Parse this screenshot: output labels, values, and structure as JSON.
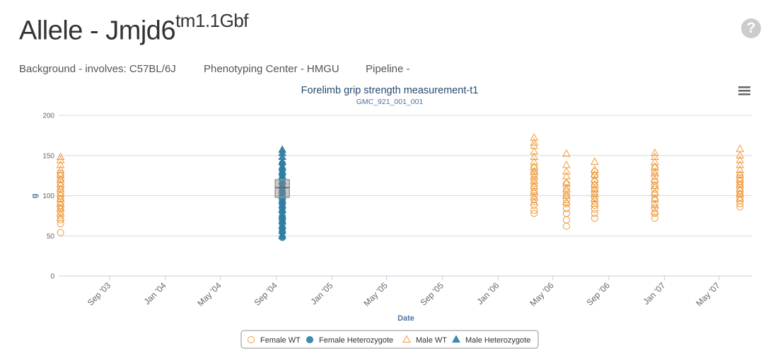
{
  "header": {
    "title_main": "Allele - Jmjd6",
    "title_sup": "tm1.1Gbf",
    "help_icon": "?",
    "background": "Background - involves: C57BL/6J",
    "center": "Phenotyping Center - HMGU",
    "pipeline": "Pipeline -"
  },
  "menu": {
    "icon": "hamburger-menu-icon"
  },
  "colors": {
    "wt": "#ef9b3c",
    "het": "#2f7ea5",
    "grid": "#d8d8d8",
    "axis": "#c0d0e0"
  },
  "chart_data": {
    "type": "scatter",
    "title": "Forelimb grip strength measurement-t1",
    "subtitle": "GMC_921_001_001",
    "xlabel": "Date",
    "ylabel": "g",
    "ylim": [
      0,
      200
    ],
    "yticks": [
      "0",
      "50",
      "100",
      "150",
      "200"
    ],
    "xlim": [
      "2003-05-12",
      "2007-07-12"
    ],
    "xticks": [
      {
        "date": "2003-09-01",
        "label": "Sep '03"
      },
      {
        "date": "2004-01-01",
        "label": "Jan '04"
      },
      {
        "date": "2004-05-01",
        "label": "May '04"
      },
      {
        "date": "2004-09-01",
        "label": "Sep '04"
      },
      {
        "date": "2005-01-01",
        "label": "Jan '05"
      },
      {
        "date": "2005-05-01",
        "label": "May '05"
      },
      {
        "date": "2005-09-01",
        "label": "Sep '05"
      },
      {
        "date": "2006-01-01",
        "label": "Jan '06"
      },
      {
        "date": "2006-05-01",
        "label": "May '06"
      },
      {
        "date": "2006-09-01",
        "label": "Sep '06"
      },
      {
        "date": "2007-01-01",
        "label": "Jan '07"
      },
      {
        "date": "2007-05-01",
        "label": "May '07"
      }
    ],
    "legend_position": "bottom-center",
    "series": [
      {
        "name": "Female WT",
        "marker": "circle-open",
        "color": "#ef9b3c",
        "points": [
          [
            "2003-05-16",
            54
          ],
          [
            "2003-05-16",
            65
          ],
          [
            "2003-05-16",
            70
          ],
          [
            "2003-05-16",
            75
          ],
          [
            "2003-05-16",
            80
          ],
          [
            "2003-05-16",
            85
          ],
          [
            "2003-05-16",
            88
          ],
          [
            "2003-05-16",
            92
          ],
          [
            "2003-05-16",
            96
          ],
          [
            "2003-05-16",
            100
          ],
          [
            "2003-05-16",
            104
          ],
          [
            "2003-05-16",
            108
          ],
          [
            "2003-05-16",
            112
          ],
          [
            "2003-05-16",
            116
          ],
          [
            "2003-05-16",
            120
          ],
          [
            "2003-05-16",
            125
          ],
          [
            "2003-05-16",
            128
          ],
          [
            "2006-03-21",
            78
          ],
          [
            "2006-03-21",
            82
          ],
          [
            "2006-03-21",
            88
          ],
          [
            "2006-03-21",
            95
          ],
          [
            "2006-03-21",
            100
          ],
          [
            "2006-03-21",
            105
          ],
          [
            "2006-03-21",
            110
          ],
          [
            "2006-03-21",
            115
          ],
          [
            "2006-03-21",
            120
          ],
          [
            "2006-03-21",
            126
          ],
          [
            "2006-03-21",
            130
          ],
          [
            "2006-03-21",
            135
          ],
          [
            "2006-05-31",
            62
          ],
          [
            "2006-05-31",
            70
          ],
          [
            "2006-05-31",
            78
          ],
          [
            "2006-05-31",
            84
          ],
          [
            "2006-05-31",
            90
          ],
          [
            "2006-05-31",
            95
          ],
          [
            "2006-05-31",
            100
          ],
          [
            "2006-05-31",
            105
          ],
          [
            "2006-05-31",
            110
          ],
          [
            "2006-05-31",
            115
          ],
          [
            "2006-08-01",
            72
          ],
          [
            "2006-08-01",
            78
          ],
          [
            "2006-08-01",
            83
          ],
          [
            "2006-08-01",
            88
          ],
          [
            "2006-08-01",
            93
          ],
          [
            "2006-08-01",
            98
          ],
          [
            "2006-08-01",
            103
          ],
          [
            "2006-08-01",
            108
          ],
          [
            "2006-08-01",
            113
          ],
          [
            "2006-08-01",
            118
          ],
          [
            "2006-08-01",
            125
          ],
          [
            "2006-08-01",
            130
          ],
          [
            "2006-12-11",
            72
          ],
          [
            "2006-12-11",
            78
          ],
          [
            "2006-12-11",
            84
          ],
          [
            "2006-12-11",
            90
          ],
          [
            "2006-12-11",
            96
          ],
          [
            "2006-12-11",
            102
          ],
          [
            "2006-12-11",
            108
          ],
          [
            "2006-12-11",
            113
          ],
          [
            "2006-12-11",
            118
          ],
          [
            "2006-12-11",
            124
          ],
          [
            "2006-12-11",
            130
          ],
          [
            "2006-12-11",
            135
          ],
          [
            "2007-06-16",
            86
          ],
          [
            "2007-06-16",
            90
          ],
          [
            "2007-06-16",
            94
          ],
          [
            "2007-06-16",
            98
          ],
          [
            "2007-06-16",
            102
          ],
          [
            "2007-06-16",
            106
          ],
          [
            "2007-06-16",
            110
          ],
          [
            "2007-06-16",
            114
          ],
          [
            "2007-06-16",
            118
          ],
          [
            "2007-06-16",
            122
          ],
          [
            "2007-06-16",
            126
          ]
        ]
      },
      {
        "name": "Female Heterozygote",
        "marker": "circle",
        "color": "#2f7ea5",
        "points": [
          [
            "2004-09-14",
            48
          ],
          [
            "2004-09-14",
            55
          ],
          [
            "2004-09-14",
            60
          ],
          [
            "2004-09-14",
            66
          ],
          [
            "2004-09-14",
            70
          ],
          [
            "2004-09-14",
            74
          ],
          [
            "2004-09-14",
            80
          ],
          [
            "2004-09-14",
            85
          ],
          [
            "2004-09-14",
            90
          ],
          [
            "2004-09-14",
            95
          ],
          [
            "2004-09-14",
            100
          ],
          [
            "2004-09-14",
            105
          ],
          [
            "2004-09-14",
            110
          ],
          [
            "2004-09-14",
            115
          ],
          [
            "2004-09-14",
            120
          ],
          [
            "2004-09-14",
            126
          ],
          [
            "2004-09-14",
            132
          ],
          [
            "2004-09-14",
            140
          ]
        ]
      },
      {
        "name": "Male WT",
        "marker": "triangle-open",
        "color": "#ef9b3c",
        "points": [
          [
            "2003-05-16",
            72
          ],
          [
            "2003-05-16",
            78
          ],
          [
            "2003-05-16",
            84
          ],
          [
            "2003-05-16",
            90
          ],
          [
            "2003-05-16",
            96
          ],
          [
            "2003-05-16",
            102
          ],
          [
            "2003-05-16",
            108
          ],
          [
            "2003-05-16",
            114
          ],
          [
            "2003-05-16",
            120
          ],
          [
            "2003-05-16",
            126
          ],
          [
            "2003-05-16",
            132
          ],
          [
            "2003-05-16",
            138
          ],
          [
            "2003-05-16",
            144
          ],
          [
            "2003-05-16",
            148
          ],
          [
            "2006-03-21",
            92
          ],
          [
            "2006-03-21",
            98
          ],
          [
            "2006-03-21",
            105
          ],
          [
            "2006-03-21",
            112
          ],
          [
            "2006-03-21",
            118
          ],
          [
            "2006-03-21",
            124
          ],
          [
            "2006-03-21",
            130
          ],
          [
            "2006-03-21",
            136
          ],
          [
            "2006-03-21",
            142
          ],
          [
            "2006-03-21",
            148
          ],
          [
            "2006-03-21",
            155
          ],
          [
            "2006-03-21",
            162
          ],
          [
            "2006-03-21",
            166
          ],
          [
            "2006-03-21",
            172
          ],
          [
            "2006-05-31",
            92
          ],
          [
            "2006-05-31",
            100
          ],
          [
            "2006-05-31",
            108
          ],
          [
            "2006-05-31",
            116
          ],
          [
            "2006-05-31",
            124
          ],
          [
            "2006-05-31",
            130
          ],
          [
            "2006-05-31",
            138
          ],
          [
            "2006-05-31",
            152
          ],
          [
            "2006-08-01",
            90
          ],
          [
            "2006-08-01",
            96
          ],
          [
            "2006-08-01",
            102
          ],
          [
            "2006-08-01",
            108
          ],
          [
            "2006-08-01",
            114
          ],
          [
            "2006-08-01",
            120
          ],
          [
            "2006-08-01",
            126
          ],
          [
            "2006-08-01",
            132
          ],
          [
            "2006-08-01",
            142
          ],
          [
            "2006-12-11",
            80
          ],
          [
            "2006-12-11",
            88
          ],
          [
            "2006-12-11",
            96
          ],
          [
            "2006-12-11",
            104
          ],
          [
            "2006-12-11",
            112
          ],
          [
            "2006-12-11",
            120
          ],
          [
            "2006-12-11",
            128
          ],
          [
            "2006-12-11",
            136
          ],
          [
            "2006-12-11",
            142
          ],
          [
            "2006-12-11",
            148
          ],
          [
            "2006-12-11",
            153
          ],
          [
            "2007-06-16",
            96
          ],
          [
            "2007-06-16",
            102
          ],
          [
            "2007-06-16",
            108
          ],
          [
            "2007-06-16",
            114
          ],
          [
            "2007-06-16",
            120
          ],
          [
            "2007-06-16",
            126
          ],
          [
            "2007-06-16",
            132
          ],
          [
            "2007-06-16",
            138
          ],
          [
            "2007-06-16",
            144
          ],
          [
            "2007-06-16",
            150
          ],
          [
            "2007-06-16",
            158
          ]
        ]
      },
      {
        "name": "Male Heterozygote",
        "marker": "triangle",
        "color": "#2f7ea5",
        "points": [
          [
            "2004-09-14",
            50
          ],
          [
            "2004-09-14",
            56
          ],
          [
            "2004-09-14",
            62
          ],
          [
            "2004-09-14",
            68
          ],
          [
            "2004-09-14",
            75
          ],
          [
            "2004-09-14",
            82
          ],
          [
            "2004-09-14",
            88
          ],
          [
            "2004-09-14",
            94
          ],
          [
            "2004-09-14",
            100
          ],
          [
            "2004-09-14",
            106
          ],
          [
            "2004-09-14",
            112
          ],
          [
            "2004-09-14",
            118
          ],
          [
            "2004-09-14",
            124
          ],
          [
            "2004-09-14",
            130
          ],
          [
            "2004-09-14",
            136
          ],
          [
            "2004-09-14",
            142
          ],
          [
            "2004-09-14",
            148
          ],
          [
            "2004-09-14",
            153
          ],
          [
            "2004-09-14",
            157
          ]
        ]
      }
    ],
    "boxplot": {
      "date": "2004-09-14",
      "q1": 98,
      "median": 110,
      "q3": 120
    }
  }
}
